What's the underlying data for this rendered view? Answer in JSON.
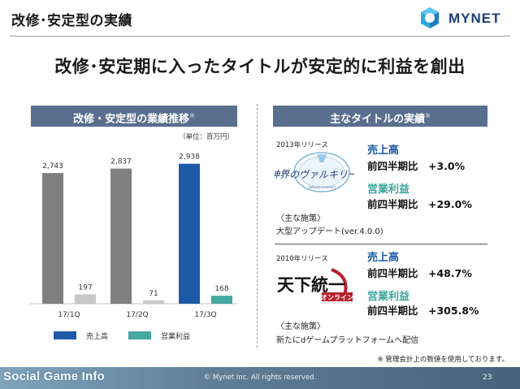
{
  "header": {
    "title": "改修･安定型の実績",
    "logo_text": "MYNET"
  },
  "headline": "改修･安定期に入ったタイトルが安定的に利益を創出",
  "left_section": {
    "title": "改修・安定型の業績推移",
    "mark": "※",
    "unit": "（単位：百万円）"
  },
  "right_section": {
    "title": "主なタイトルの実績",
    "mark": "※"
  },
  "chart_data": {
    "type": "bar",
    "categories": [
      "17/1Q",
      "17/2Q",
      "17/3Q"
    ],
    "series": [
      {
        "name": "売上高",
        "values": [
          2743,
          2837,
          2938
        ],
        "labels": [
          "2,743",
          "2,837",
          "2,938"
        ]
      },
      {
        "name": "営業利益",
        "values": [
          197,
          71,
          168
        ],
        "labels": [
          "197",
          "71",
          "168"
        ]
      }
    ],
    "ylim": [
      0,
      3000
    ],
    "grid": false,
    "legend_position": "bottom",
    "colors": {
      "sales_default": "#808080",
      "sales_highlight": "#1d5aa6",
      "profit_default": "#c8c8c8",
      "profit_highlight": "#46a8a0"
    }
  },
  "titles": [
    {
      "release": "2013年リリース",
      "logo_alt": "神界のヴァルキリー",
      "metric1_label": "売上高",
      "metric1_value": "前四半期比　+3.0%",
      "metric2_label": "営業利益",
      "metric2_value": "前四半期比　+29.0%",
      "measures_heading": "〈主な施策〉",
      "measures_text": "大型アップデート(ver.4.0.0)"
    },
    {
      "release": "2010年リリース",
      "logo_alt": "天下統一オンライン",
      "metric1_label": "売上高",
      "metric1_value": "前四半期比　+48.7%",
      "metric2_label": "営業利益",
      "metric2_value": "前四半期比　+305.8%",
      "measures_heading": "〈主な施策〉",
      "measures_text": "新たにdゲームプラットフォームへ配信"
    }
  ],
  "colors": {
    "banner": "#5a6e8e",
    "sales_label": "#1d5aa6",
    "profit_label": "#3aa59b",
    "footer": "#5f7f99"
  },
  "footnote": "※ 管理会計上の数値を使用しております。",
  "footer": {
    "copyright": "© Mynet Inc. All rights reserved.",
    "page_number": "23",
    "brand_a": "Social Game ",
    "brand_b": "Info"
  }
}
